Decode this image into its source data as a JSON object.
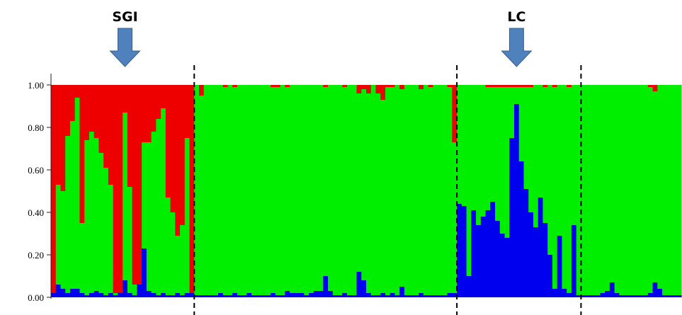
{
  "chart_data": {
    "type": "bar",
    "stacked": true,
    "normalized": true,
    "title": "",
    "xlabel": "",
    "ylabel": "",
    "ylim": [
      0,
      1
    ],
    "yticks": [
      "0.00",
      "0.20",
      "0.40",
      "0.60",
      "0.80",
      "1.00"
    ],
    "ytick_values": [
      0,
      0.2,
      0.4,
      0.6,
      0.8,
      1.0
    ],
    "grid": false,
    "legend": "none",
    "colors": {
      "blue": "#0000ee",
      "green": "#00ee00",
      "red": "#ee0000"
    },
    "group_boundaries_after_bar": [
      29,
      84,
      110
    ],
    "annotations": [
      {
        "label": "SGI",
        "bar": 15,
        "icon": "down-arrow-icon",
        "color": "#4f81bd"
      },
      {
        "label": "LC",
        "bar": 97,
        "icon": "down-arrow-icon",
        "color": "#4f81bd"
      }
    ],
    "series": [
      {
        "color": "blue",
        "values": [
          0.02,
          0.06,
          0.04,
          0.02,
          0.04,
          0.04,
          0.02,
          0.01,
          0.02,
          0.03,
          0.02,
          0.01,
          0.02,
          0.01,
          0.02,
          0.08,
          0.02,
          0.01,
          0.06,
          0.23,
          0.03,
          0.02,
          0.01,
          0.02,
          0.01,
          0.01,
          0.02,
          0.01,
          0.02,
          0.02,
          0.01,
          0.01,
          0.01,
          0.01,
          0.01,
          0.02,
          0.01,
          0.01,
          0.02,
          0.01,
          0.01,
          0.02,
          0.01,
          0.01,
          0.01,
          0.01,
          0.02,
          0.01,
          0.01,
          0.03,
          0.02,
          0.02,
          0.02,
          0.01,
          0.02,
          0.03,
          0.03,
          0.1,
          0.03,
          0.01,
          0.01,
          0.02,
          0.01,
          0.01,
          0.12,
          0.08,
          0.02,
          0.01,
          0.01,
          0.02,
          0.01,
          0.02,
          0.01,
          0.05,
          0.01,
          0.01,
          0.01,
          0.02,
          0.01,
          0.01,
          0.01,
          0.01,
          0.01,
          0.02,
          0.02,
          0.44,
          0.43,
          0.1,
          0.41,
          0.34,
          0.38,
          0.41,
          0.45,
          0.36,
          0.3,
          0.28,
          0.75,
          0.91,
          0.64,
          0.51,
          0.4,
          0.33,
          0.47,
          0.35,
          0.2,
          0.04,
          0.29,
          0.04,
          0.02,
          0.34,
          0.01,
          0.01,
          0.01,
          0.01,
          0.01,
          0.02,
          0.03,
          0.07,
          0.02,
          0.01,
          0.01,
          0.01,
          0.01,
          0.01,
          0.01,
          0.02,
          0.07,
          0.04,
          0.01,
          0.01,
          0.01,
          0.01
        ]
      },
      {
        "color": "green",
        "values": [
          0.0,
          0.47,
          0.46,
          0.74,
          0.79,
          0.9,
          0.33,
          0.73,
          0.76,
          0.72,
          0.66,
          0.6,
          0.51,
          0.01,
          0.0,
          0.79,
          0.5,
          0.05,
          0.0,
          0.5,
          0.7,
          0.76,
          0.83,
          0.87,
          0.46,
          0.39,
          0.27,
          0.33,
          0.73,
          0.0,
          0.99,
          0.94,
          0.99,
          0.99,
          0.99,
          0.98,
          0.98,
          0.99,
          0.97,
          0.99,
          0.99,
          0.98,
          0.99,
          0.99,
          0.99,
          0.99,
          0.97,
          0.98,
          0.99,
          0.96,
          0.98,
          0.98,
          0.98,
          0.99,
          0.98,
          0.97,
          0.97,
          0.89,
          0.97,
          0.99,
          0.99,
          0.97,
          0.99,
          0.99,
          0.84,
          0.9,
          0.94,
          0.99,
          0.95,
          0.91,
          0.98,
          0.97,
          0.99,
          0.93,
          0.99,
          0.99,
          0.99,
          0.96,
          0.99,
          0.98,
          0.99,
          0.99,
          0.99,
          0.97,
          0.71,
          0.56,
          0.57,
          0.9,
          0.59,
          0.66,
          0.62,
          0.58,
          0.54,
          0.63,
          0.69,
          0.71,
          0.24,
          0.08,
          0.35,
          0.48,
          0.59,
          0.67,
          0.53,
          0.64,
          0.8,
          0.95,
          0.71,
          0.96,
          0.97,
          0.66,
          0.99,
          0.99,
          0.99,
          0.99,
          0.99,
          0.98,
          0.97,
          0.93,
          0.98,
          0.99,
          0.99,
          0.99,
          0.99,
          0.99,
          0.99,
          0.97,
          0.9,
          0.96,
          0.99,
          0.99,
          0.99,
          0.99
        ]
      },
      {
        "color": "red",
        "values": [
          0.98,
          0.47,
          0.5,
          0.24,
          0.17,
          0.06,
          0.65,
          0.26,
          0.22,
          0.25,
          0.32,
          0.39,
          0.47,
          0.98,
          0.98,
          0.13,
          0.48,
          0.94,
          0.94,
          0.27,
          0.27,
          0.22,
          0.16,
          0.11,
          0.53,
          0.6,
          0.71,
          0.66,
          0.25,
          0.98,
          0.0,
          0.05,
          0.0,
          0.0,
          0.0,
          0.0,
          0.01,
          0.0,
          0.01,
          0.0,
          0.0,
          0.0,
          0.0,
          0.0,
          0.0,
          0.0,
          0.01,
          0.01,
          0.0,
          0.01,
          0.0,
          0.0,
          0.0,
          0.0,
          0.0,
          0.0,
          0.0,
          0.01,
          0.0,
          0.0,
          0.0,
          0.01,
          0.0,
          0.0,
          0.04,
          0.02,
          0.04,
          0.0,
          0.04,
          0.07,
          0.01,
          0.01,
          0.0,
          0.02,
          0.0,
          0.0,
          0.0,
          0.02,
          0.0,
          0.01,
          0.0,
          0.0,
          0.0,
          0.01,
          0.27,
          0.0,
          0.0,
          0.0,
          0.0,
          0.0,
          0.0,
          0.01,
          0.01,
          0.01,
          0.01,
          0.01,
          0.01,
          0.01,
          0.01,
          0.01,
          0.01,
          0.0,
          0.0,
          0.01,
          0.0,
          0.01,
          0.0,
          0.0,
          0.01,
          0.0,
          0.0,
          0.0,
          0.0,
          0.0,
          0.0,
          0.0,
          0.0,
          0.0,
          0.0,
          0.0,
          0.0,
          0.0,
          0.0,
          0.0,
          0.0,
          0.01,
          0.03,
          0.0,
          0.0,
          0.0,
          0.0,
          0.0
        ]
      }
    ]
  }
}
